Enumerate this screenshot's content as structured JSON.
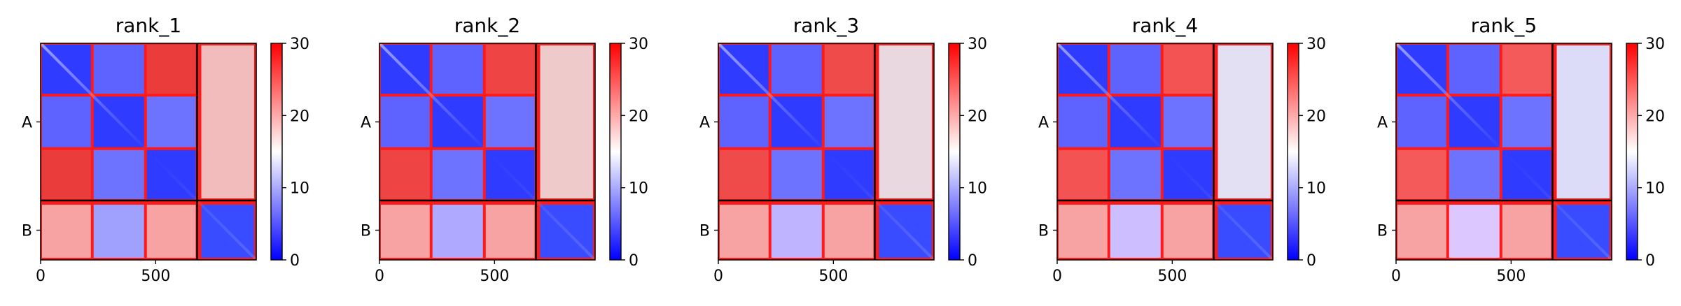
{
  "chart_data": [
    {
      "type": "heatmap",
      "title": "rank_1",
      "ylabels": [
        "A",
        "B"
      ],
      "xticks": [
        0,
        500
      ],
      "xlim": [
        0,
        937
      ],
      "chain_boundaries": [
        680
      ],
      "colorbar": {
        "ticks": [
          0,
          10,
          20,
          30
        ],
        "vmin": 0,
        "vmax": 30,
        "colors": [
          "#0000ff",
          "#ffffff",
          "#ff0000"
        ]
      }
    },
    {
      "type": "heatmap",
      "title": "rank_2",
      "ylabels": [
        "A",
        "B"
      ],
      "xticks": [
        0,
        500
      ],
      "xlim": [
        0,
        937
      ],
      "chain_boundaries": [
        680
      ],
      "colorbar": {
        "ticks": [
          0,
          10,
          20,
          30
        ],
        "vmin": 0,
        "vmax": 30,
        "colors": [
          "#0000ff",
          "#ffffff",
          "#ff0000"
        ]
      }
    },
    {
      "type": "heatmap",
      "title": "rank_3",
      "ylabels": [
        "A",
        "B"
      ],
      "xticks": [
        0,
        500
      ],
      "xlim": [
        0,
        937
      ],
      "chain_boundaries": [
        680
      ],
      "colorbar": {
        "ticks": [
          0,
          10,
          20,
          30
        ],
        "vmin": 0,
        "vmax": 30,
        "colors": [
          "#0000ff",
          "#ffffff",
          "#ff0000"
        ]
      }
    },
    {
      "type": "heatmap",
      "title": "rank_4",
      "ylabels": [
        "A",
        "B"
      ],
      "xticks": [
        0,
        500
      ],
      "xlim": [
        0,
        937
      ],
      "chain_boundaries": [
        680
      ],
      "colorbar": {
        "ticks": [
          0,
          10,
          20,
          30
        ],
        "vmin": 0,
        "vmax": 30,
        "colors": [
          "#0000ff",
          "#ffffff",
          "#ff0000"
        ]
      }
    },
    {
      "type": "heatmap",
      "title": "rank_5",
      "ylabels": [
        "A",
        "B"
      ],
      "xticks": [
        0,
        500
      ],
      "xlim": [
        0,
        937
      ],
      "chain_boundaries": [
        680
      ],
      "colorbar": {
        "ticks": [
          0,
          10,
          20,
          30
        ],
        "vmin": 0,
        "vmax": 30,
        "colors": [
          "#0000ff",
          "#ffffff",
          "#ff0000"
        ]
      }
    }
  ]
}
